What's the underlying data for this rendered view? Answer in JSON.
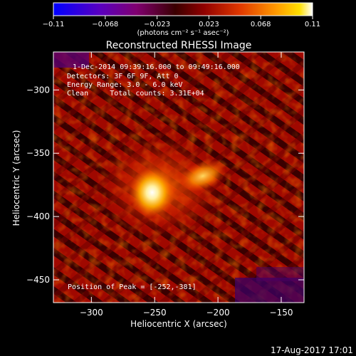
{
  "chart_data": {
    "type": "heatmap",
    "title": "Reconstructed RHESSI Image",
    "xlabel": "Heliocentric X (arcsec)",
    "ylabel": "Heliocentric Y (arcsec)",
    "xlim": [
      -330,
      -132
    ],
    "ylim": [
      -468,
      -270
    ],
    "x_ticks": [
      -300,
      -250,
      -200,
      -150
    ],
    "y_ticks": [
      -300,
      -350,
      -400,
      -450
    ],
    "x_tick_labels": [
      "−300",
      "−250",
      "−200",
      "−150"
    ],
    "y_tick_labels": [
      "−300",
      "−350",
      "−400",
      "−450"
    ],
    "colorbar": {
      "range": [
        -0.11,
        0.11
      ],
      "tick_labels": [
        "−0.11",
        "−0.068",
        "−0.023",
        "0.023",
        "0.068",
        "0.11"
      ],
      "unit_text": "(photons cm⁻² s⁻¹ asec⁻²)",
      "colormap": [
        "#0000ff",
        "#5500cc",
        "#800080",
        "#3a0000",
        "#8c0000",
        "#d83000",
        "#ff8000",
        "#ffd000",
        "#ffffff"
      ]
    },
    "annotations": [
      "1-Dec-2014 09:39:16.000 to 09:49:16.000",
      "Detectors: 3F 6F 9F, Att 0",
      "Energy Range: 3.0 - 6.0 keV",
      "Clean     Total counts: 3.31E+04"
    ],
    "peak_label": "Position of Peak = [-252,-381]",
    "peak_position": [
      -252,
      -381
    ],
    "secondary_source": [
      -212,
      -368
    ],
    "grid": false,
    "legend": "none"
  },
  "footer_timestamp": "17-Aug-2017 17:01"
}
